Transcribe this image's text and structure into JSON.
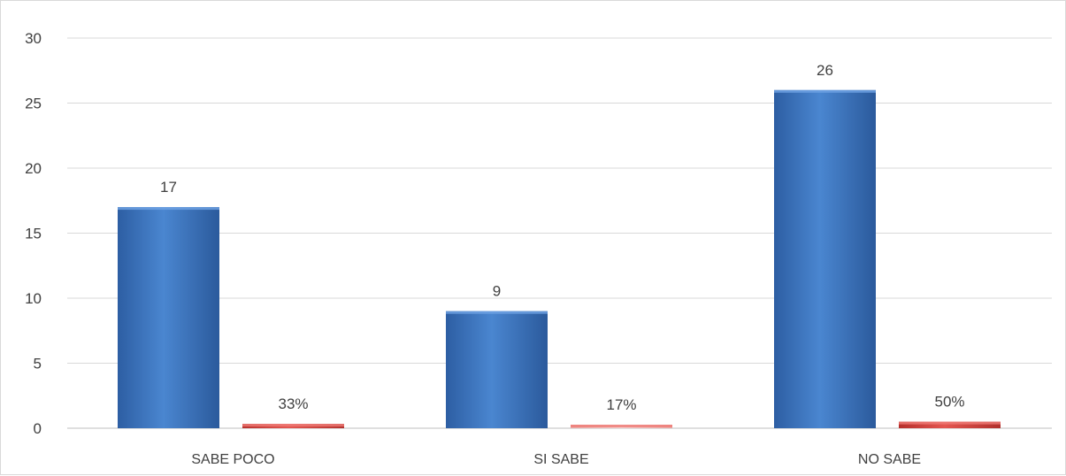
{
  "chart_data": {
    "type": "bar",
    "categories": [
      "SABE POCO",
      "SI SABE",
      "NO SABE"
    ],
    "series": [
      {
        "values": [
          17,
          9,
          26
        ],
        "data_labels": [
          "17",
          "9",
          "26"
        ],
        "color": "#3a75c4"
      },
      {
        "values": [
          0.33,
          0.17,
          0.5
        ],
        "data_labels": [
          "33%",
          "17%",
          "50%"
        ],
        "color": "#d9413c"
      }
    ],
    "ylim": [
      0,
      30
    ],
    "yticks": [
      0,
      5,
      10,
      15,
      20,
      25,
      30
    ],
    "grid": true,
    "legend": "none"
  }
}
